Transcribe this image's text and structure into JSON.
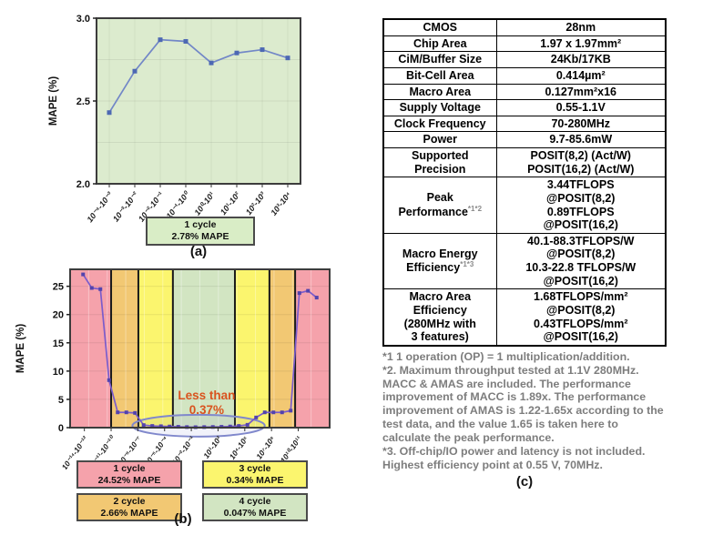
{
  "figure": {
    "caption_a": "(a)",
    "caption_b": "(b)",
    "caption_c": "(c)"
  },
  "chart_data": [
    {
      "id": "chart-a",
      "type": "line",
      "title": "",
      "xlabel": "",
      "ylabel": "MAPE (%)",
      "ylim": [
        2.0,
        3.0
      ],
      "yticks": [
        2.0,
        2.5,
        3.0
      ],
      "grid": true,
      "categories": [
        "10⁻⁴-10⁻³",
        "10⁻³-10⁻²",
        "10⁻²-10⁻¹",
        "10⁻¹-10⁰",
        "10⁰-10¹",
        "10¹-10²",
        "10²-10³",
        "10³-10⁴"
      ],
      "values": [
        2.43,
        2.68,
        2.87,
        2.86,
        2.73,
        2.79,
        2.81,
        2.76
      ],
      "background": "#dcebce",
      "line_color": "#7287c7",
      "marker_color": "#4d68b3",
      "legend": {
        "line1": "1 cycle",
        "line2": "2.78% MAPE",
        "color": "#d9edc6"
      }
    },
    {
      "id": "chart-b",
      "type": "line",
      "title": "",
      "xlabel": "",
      "ylabel": "MAPE (%)",
      "ylim": [
        0,
        28
      ],
      "yticks": [
        0,
        5,
        10,
        15,
        20,
        25
      ],
      "grid": true,
      "tick_labels": [
        "10⁻¹⁴-10⁻¹²",
        "10⁻¹¹-10⁻¹⁰",
        "10⁻⁸-10⁻⁷",
        "10⁻⁵-10⁻⁴",
        "10⁻²-10⁻¹",
        "10¹-10²",
        "10⁴-10⁵",
        "10⁷-10⁸",
        "10¹⁰-10¹¹"
      ],
      "values": [
        27.1,
        24.7,
        24.5,
        8.4,
        2.7,
        2.7,
        2.6,
        0.45,
        0.3,
        0.25,
        0.2,
        0.15,
        0.1,
        0.08,
        0.1,
        0.12,
        0.15,
        0.2,
        0.3,
        0.5,
        1.8,
        2.7,
        2.7,
        2.7,
        3.0,
        23.8,
        24.2,
        23.0
      ],
      "line_color": "#7b5ccb",
      "marker_color": "#5343ad",
      "regions": [
        {
          "cycle": "1 cycle",
          "from": 0.0,
          "to": 0.158,
          "color": "#f5a2ab"
        },
        {
          "cycle": "2 cycle",
          "from": 0.158,
          "to": 0.263,
          "color": "#f2c873"
        },
        {
          "cycle": "3 cycle",
          "from": 0.263,
          "to": 0.396,
          "color": "#fbf56e"
        },
        {
          "cycle": "4 cycle",
          "from": 0.396,
          "to": 0.635,
          "color": "#d2e5c2"
        },
        {
          "cycle": "3 cycle",
          "from": 0.635,
          "to": 0.768,
          "color": "#fbf56e"
        },
        {
          "cycle": "2 cycle",
          "from": 0.768,
          "to": 0.867,
          "color": "#f2c873"
        },
        {
          "cycle": "1 cycle",
          "from": 0.867,
          "to": 1.0,
          "color": "#f5a2ab"
        }
      ],
      "annotation": {
        "line1": "Less than",
        "line2": "0.37%",
        "color": "#d9531e",
        "x_frac": 0.526,
        "y_value_line1": 5.0,
        "y_value_line2": 2.4
      },
      "ellipse": {
        "x_from": 0.24,
        "x_to": 0.75,
        "cy_value": 0.35,
        "color": "#8088cc"
      },
      "legend_boxes": [
        {
          "line1": "1 cycle",
          "line2": "24.52% MAPE",
          "color": "#f5a2ab"
        },
        {
          "line1": "2 cycle",
          "line2": "2.66% MAPE",
          "color": "#f2c873"
        },
        {
          "line1": "3 cycle",
          "line2": "0.34% MAPE",
          "color": "#fbf56e"
        },
        {
          "line1": "4 cycle",
          "line2": "0.047% MAPE",
          "color": "#d2e5c2"
        }
      ]
    }
  ],
  "table": {
    "rows": [
      {
        "label_lines": [
          "CMOS"
        ],
        "value_lines": [
          "28nm"
        ]
      },
      {
        "label_lines": [
          "Chip Area"
        ],
        "value_lines": [
          "1.97 x 1.97mm²"
        ]
      },
      {
        "label_lines": [
          "CiM/Buffer Size"
        ],
        "value_lines": [
          "24Kb/17KB"
        ]
      },
      {
        "label_lines": [
          "Bit-Cell Area"
        ],
        "value_lines": [
          "0.414µm²"
        ]
      },
      {
        "label_lines": [
          "Macro Area"
        ],
        "value_lines": [
          "0.127mm²x16"
        ]
      },
      {
        "label_lines": [
          "Supply Voltage"
        ],
        "value_lines": [
          "0.55-1.1V"
        ]
      },
      {
        "label_lines": [
          "Clock Frequency"
        ],
        "value_lines": [
          "70-280MHz"
        ]
      },
      {
        "label_lines": [
          "Power"
        ],
        "value_lines": [
          "9.7-85.6mW"
        ]
      },
      {
        "label_lines": [
          "Supported",
          "Precision"
        ],
        "value_lines": [
          "POSIT(8,2) (Act/W)",
          "POSIT(16,2) (Act/W)"
        ]
      },
      {
        "label_lines": [
          "Peak",
          "Performance"
        ],
        "label_sup": "*1*2",
        "value_lines": [
          "3.44TFLOPS",
          "@POSIT(8,2)",
          "0.89TFLOPS",
          "@POSIT(16,2)"
        ]
      },
      {
        "label_lines": [
          "Macro Energy",
          "Efficiency"
        ],
        "label_sup": "*1*3",
        "value_lines": [
          "40.1-88.3TFLOPS/W",
          "@POSIT(8,2)",
          "10.3-22.8 TFLOPS/W",
          "@POSIT(16,2)"
        ]
      },
      {
        "label_lines": [
          "Macro Area",
          "Efficiency",
          "(280MHz with",
          "3 features)"
        ],
        "value_lines": [
          "1.68TFLOPS/mm²",
          "@POSIT(8,2)",
          "0.43TFLOPS/mm²",
          "@POSIT(16,2)"
        ]
      }
    ],
    "footnotes": [
      "*1 1 operation (OP) = 1 multiplication/addition.",
      "*2. Maximum throughput tested at 1.1V 280MHz. MACC & AMAS are included. The performance improvement of MACC is 1.89x. The performance improvement of AMAS is 1.22-1.65x according to the test data, and the value 1.65 is taken here to calculate the peak performance.",
      "*3. Off-chip/IO power and latency is not included. Highest efficiency point  at 0.55 V, 70MHz."
    ]
  }
}
